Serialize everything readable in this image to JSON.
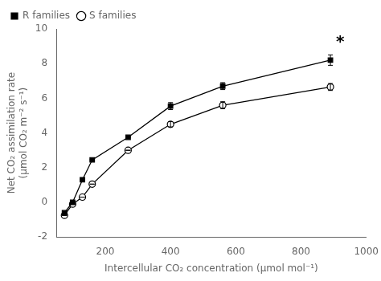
{
  "chart_data": {
    "type": "line",
    "xlabel": "Intercellular CO₂ concentration (μmol mol⁻¹)",
    "ylabel": "Net CO₂ assimilation rate\n(μmol CO₂ m⁻² s⁻¹)",
    "x": [
      75,
      100,
      130,
      160,
      270,
      400,
      560,
      890
    ],
    "series": [
      {
        "name": "R families",
        "color": "#000000",
        "marker": "square",
        "values": [
          -0.6,
          0.0,
          1.3,
          2.45,
          3.75,
          5.55,
          6.7,
          8.2
        ],
        "yerr": [
          0.0,
          0.0,
          0.0,
          0.0,
          0.0,
          0.2,
          0.2,
          0.3
        ]
      },
      {
        "name": "S families",
        "color": "#000000",
        "marker": "open_circle",
        "values": [
          -0.75,
          -0.1,
          0.3,
          1.05,
          3.0,
          4.5,
          5.6,
          6.65
        ],
        "yerr": [
          0.0,
          0.0,
          0.0,
          0.0,
          0.0,
          0.15,
          0.2,
          0.2
        ]
      }
    ],
    "annotations": [
      {
        "text": "*",
        "x": 920,
        "y": 9.4
      }
    ],
    "xlim": [
      50,
      1000
    ],
    "ylim": [
      -2,
      10
    ],
    "xticks": [
      200,
      400,
      600,
      800,
      1000
    ],
    "yticks": [
      -2,
      0,
      2,
      4,
      6,
      8,
      10
    ],
    "grid": false,
    "legend": "upper left"
  }
}
